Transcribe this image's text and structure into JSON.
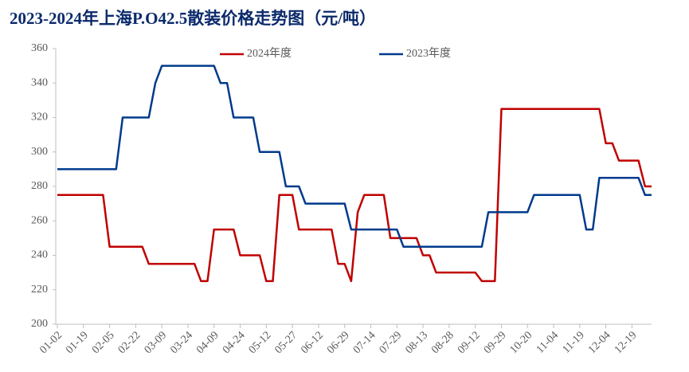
{
  "chart_data": {
    "type": "line",
    "title": "2023-2024年上海P.O42.5散装价格走势图（元/吨）",
    "categories": [
      "01-02",
      null,
      null,
      null,
      "01-19",
      null,
      null,
      null,
      "02-05",
      null,
      null,
      null,
      "02-22",
      null,
      null,
      null,
      "03-09",
      null,
      null,
      null,
      "03-24",
      null,
      null,
      null,
      "04-09",
      null,
      null,
      null,
      "04-24",
      null,
      null,
      null,
      "05-12",
      null,
      null,
      null,
      "05-27",
      null,
      null,
      null,
      "06-12",
      null,
      null,
      null,
      "06-29",
      null,
      null,
      null,
      "07-14",
      null,
      null,
      null,
      "07-29",
      null,
      null,
      null,
      "08-13",
      null,
      null,
      null,
      "08-28",
      null,
      null,
      null,
      "09-12",
      null,
      null,
      null,
      "09-29",
      null,
      null,
      null,
      "10-20",
      null,
      null,
      null,
      "11-04",
      null,
      null,
      null,
      "11-19",
      null,
      null,
      null,
      "12-04",
      null,
      null,
      null,
      "12-19",
      null,
      null,
      null
    ],
    "series": [
      {
        "name": "2024年度",
        "color": "#c00000",
        "values": [
          275,
          275,
          275,
          275,
          275,
          275,
          275,
          275,
          245,
          245,
          245,
          245,
          245,
          245,
          235,
          235,
          235,
          235,
          235,
          235,
          235,
          235,
          225,
          225,
          255,
          255,
          255,
          255,
          240,
          240,
          240,
          240,
          225,
          225,
          275,
          275,
          275,
          255,
          255,
          255,
          255,
          255,
          255,
          235,
          235,
          225,
          265,
          275,
          275,
          275,
          275,
          250,
          250,
          250,
          250,
          250,
          240,
          240,
          230,
          230,
          230,
          230,
          230,
          230,
          230,
          225,
          225,
          225,
          325,
          325,
          325,
          325,
          325,
          325,
          325,
          325,
          325,
          325,
          325,
          325,
          325,
          325,
          325,
          325,
          305,
          305,
          295,
          295,
          295,
          295,
          280,
          280
        ]
      },
      {
        "name": "2023年度",
        "color": "#003a8c",
        "values": [
          290,
          290,
          290,
          290,
          290,
          290,
          290,
          290,
          290,
          290,
          320,
          320,
          320,
          320,
          320,
          340,
          350,
          350,
          350,
          350,
          350,
          350,
          350,
          350,
          350,
          340,
          340,
          320,
          320,
          320,
          320,
          300,
          300,
          300,
          300,
          280,
          280,
          280,
          270,
          270,
          270,
          270,
          270,
          270,
          270,
          255,
          255,
          255,
          255,
          255,
          255,
          255,
          255,
          245,
          245,
          245,
          245,
          245,
          245,
          245,
          245,
          245,
          245,
          245,
          245,
          245,
          265,
          265,
          265,
          265,
          265,
          265,
          265,
          275,
          275,
          275,
          275,
          275,
          275,
          275,
          275,
          255,
          255,
          285,
          285,
          285,
          285,
          285,
          285,
          285,
          275,
          275
        ]
      }
    ],
    "ylim": [
      200,
      360
    ],
    "yticks": [
      200,
      220,
      240,
      260,
      280,
      300,
      320,
      340,
      360
    ],
    "legend": "top"
  }
}
